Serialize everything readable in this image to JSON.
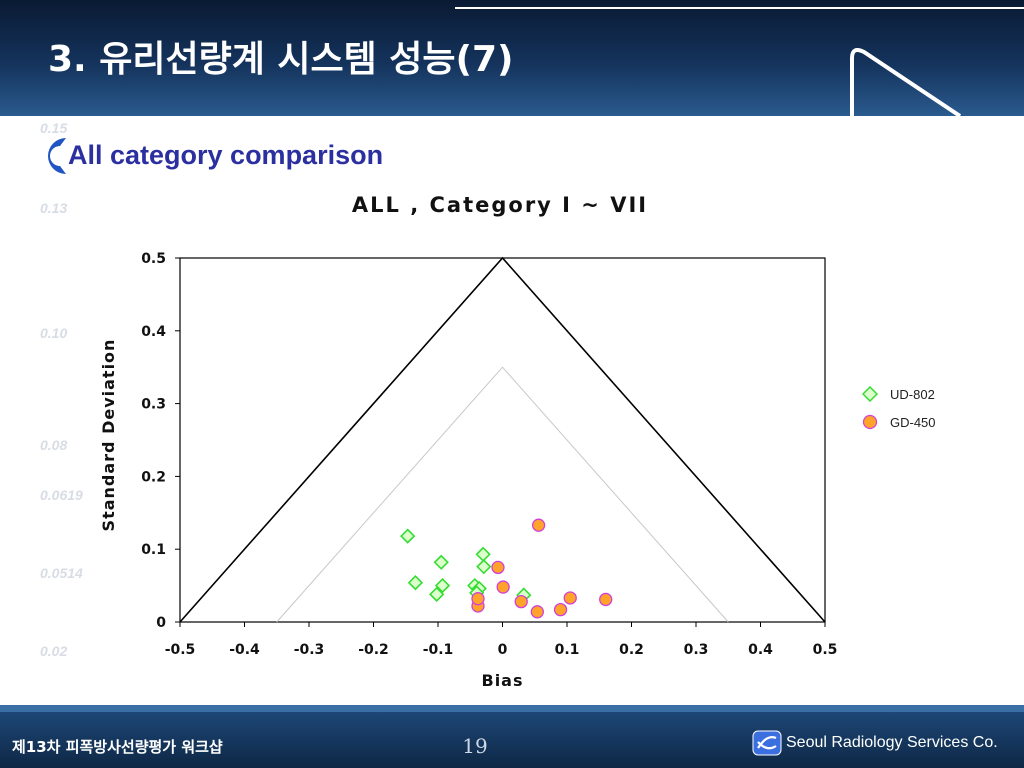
{
  "slide": {
    "title": "3. 유리선량계 시스템 성능(7)",
    "subtitle": "All category comparison",
    "page_number": "19",
    "footer_left": "제13차 피폭방사선량평가 워크샵",
    "company": "Seoul Radiology Services Co.",
    "background_numbers": [
      "0.15",
      "0.13",
      "0.10",
      "0.08",
      "0.0619",
      "0.0514",
      "0.02"
    ]
  },
  "colors": {
    "header": "#14335c",
    "subtitle": "#2b2fa0",
    "ud802_stroke": "#33dd33",
    "ud802_fill": "#ddffcc",
    "gd450_fill": "#ffa32a",
    "gd450_stroke": "#d23fd8"
  },
  "chart_data": {
    "type": "scatter",
    "title": "ALL , Category  I ~ VII",
    "xlabel": "Bias",
    "ylabel": "Standard Deviation",
    "xlim": [
      -0.5,
      0.5
    ],
    "ylim": [
      0,
      0.5
    ],
    "x_ticks": [
      "-0.5",
      "-0.4",
      "-0.3",
      "-0.2",
      "-0.1",
      "0",
      "0.1",
      "0.2",
      "0.3",
      "0.4",
      "0.5"
    ],
    "y_ticks": [
      "0",
      "0.1",
      "0.2",
      "0.3",
      "0.4",
      "0.5"
    ],
    "grid": false,
    "legend_position": "right",
    "reference_lines": [
      {
        "points": [
          [
            -0.5,
            0
          ],
          [
            0,
            0.5
          ],
          [
            0.5,
            0
          ]
        ],
        "style": "dark"
      },
      {
        "points": [
          [
            -0.35,
            0
          ],
          [
            0,
            0.35
          ],
          [
            0.35,
            0
          ]
        ],
        "style": "light"
      }
    ],
    "series": [
      {
        "name": "UD-802",
        "marker": "diamond",
        "points": [
          [
            -0.147,
            0.118
          ],
          [
            -0.095,
            0.082
          ],
          [
            -0.135,
            0.054
          ],
          [
            -0.093,
            0.05
          ],
          [
            -0.102,
            0.038
          ],
          [
            -0.043,
            0.05
          ],
          [
            -0.03,
            0.093
          ],
          [
            -0.029,
            0.076
          ],
          [
            -0.036,
            0.046
          ],
          [
            0.033,
            0.037
          ],
          [
            -0.04,
            0.04
          ]
        ]
      },
      {
        "name": "GD-450",
        "marker": "circle",
        "points": [
          [
            0.056,
            0.133
          ],
          [
            -0.007,
            0.075
          ],
          [
            0.001,
            0.048
          ],
          [
            -0.038,
            0.022
          ],
          [
            -0.038,
            0.032
          ],
          [
            0.029,
            0.028
          ],
          [
            0.054,
            0.014
          ],
          [
            0.09,
            0.017
          ],
          [
            0.105,
            0.033
          ],
          [
            0.16,
            0.031
          ]
        ]
      }
    ]
  }
}
